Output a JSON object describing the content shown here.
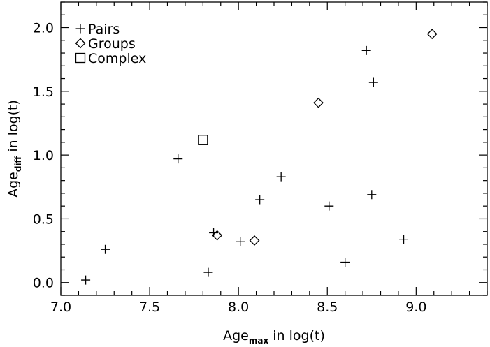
{
  "chart_data": {
    "type": "scatter",
    "xlim": [
      7.0,
      9.4
    ],
    "ylim": [
      -0.1,
      2.2
    ],
    "x_ticks": [
      7.0,
      7.5,
      8.0,
      8.5,
      9.0
    ],
    "y_ticks": [
      0.0,
      0.5,
      1.0,
      1.5,
      2.0
    ],
    "x_tick_labels": [
      "7.0",
      "7.5",
      "8.0",
      "8.5",
      "9.0"
    ],
    "y_tick_labels": [
      "0.0",
      "0.5",
      "1.0",
      "1.5",
      "2.0"
    ],
    "xlabel": {
      "main": "Age",
      "sub": "max",
      "rest": " in log(t)"
    },
    "ylabel": {
      "main": "Age",
      "sub": "diff",
      "rest": " in log(t)"
    },
    "grid": false,
    "legend_position": "top-left",
    "series": [
      {
        "name": "Pairs",
        "marker": "plus",
        "points": [
          [
            7.14,
            0.02
          ],
          [
            7.25,
            0.26
          ],
          [
            7.66,
            0.97
          ],
          [
            7.83,
            0.08
          ],
          [
            7.86,
            0.39
          ],
          [
            8.01,
            0.32
          ],
          [
            8.12,
            0.65
          ],
          [
            8.24,
            0.83
          ],
          [
            8.51,
            0.6
          ],
          [
            8.6,
            0.16
          ],
          [
            8.72,
            1.82
          ],
          [
            8.75,
            0.69
          ],
          [
            8.76,
            1.57
          ],
          [
            8.93,
            0.34
          ]
        ]
      },
      {
        "name": "Groups",
        "marker": "diamond",
        "points": [
          [
            7.88,
            0.37
          ],
          [
            8.09,
            0.33
          ],
          [
            8.45,
            1.41
          ],
          [
            9.09,
            1.95
          ]
        ]
      },
      {
        "name": "Complex",
        "marker": "square",
        "points": [
          [
            7.8,
            1.12
          ]
        ]
      }
    ]
  }
}
